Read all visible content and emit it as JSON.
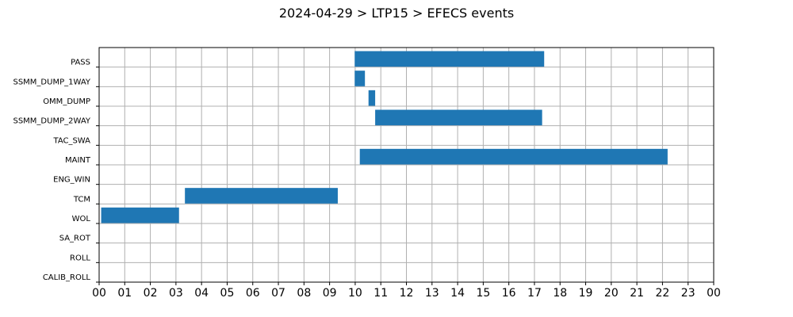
{
  "chart_data": {
    "type": "bar",
    "orientation": "horizontal-gantt",
    "title": "2024-04-29 > LTP15 > EFECS events",
    "xlabel": "",
    "ylabel": "",
    "xlim_hours": [
      0,
      24
    ],
    "x_tick_labels": [
      "00",
      "01",
      "02",
      "03",
      "04",
      "05",
      "06",
      "07",
      "08",
      "09",
      "10",
      "11",
      "12",
      "13",
      "14",
      "15",
      "16",
      "17",
      "18",
      "19",
      "20",
      "21",
      "22",
      "23",
      "00"
    ],
    "categories": [
      "PASS",
      "SSMM_DUMP_1WAY",
      "OMM_DUMP",
      "SSMM_DUMP_2WAY",
      "TAC_SWA",
      "MAINT",
      "ENG_WIN",
      "TCM",
      "WOL",
      "SA_ROT",
      "ROLL",
      "CALIB_ROLL"
    ],
    "events": [
      {
        "category": "PASS",
        "start": 9.98,
        "end": 17.38
      },
      {
        "category": "SSMM_DUMP_1WAY",
        "start": 9.98,
        "end": 10.38
      },
      {
        "category": "OMM_DUMP",
        "start": 10.52,
        "end": 10.78
      },
      {
        "category": "SSMM_DUMP_2WAY",
        "start": 10.78,
        "end": 17.3
      },
      {
        "category": "MAINT",
        "start": 10.18,
        "end": 22.2
      },
      {
        "category": "TCM",
        "start": 3.35,
        "end": 9.32
      },
      {
        "category": "WOL",
        "start": 0.08,
        "end": 3.12
      }
    ],
    "bar_color": "#1f77b4",
    "grid": true
  }
}
